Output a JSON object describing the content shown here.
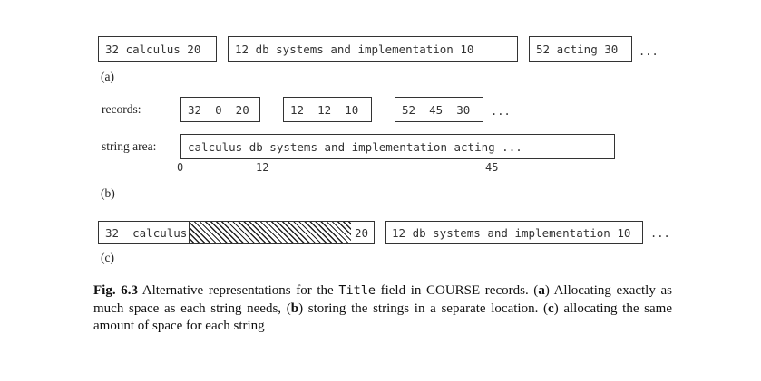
{
  "part_a": {
    "label": "(a)",
    "boxes": [
      "32 calculus 20",
      "12 db systems and implementation 10",
      "52 acting 30"
    ],
    "ellipsis": "..."
  },
  "part_b": {
    "label": "(b)",
    "records_label": "records:",
    "records": [
      "32  0  20",
      "12  12  10",
      "52  45  30"
    ],
    "records_ellipsis": "...",
    "string_area_label": "string area:",
    "string_area": "calculus db systems and implementation acting ...",
    "offsets": [
      "0",
      "12",
      "45"
    ]
  },
  "part_c": {
    "label": "(c)",
    "record1_id": "32",
    "record1_text": "calculus",
    "record1_end": "20",
    "record2": "12 db systems and implementation 10",
    "ellipsis": "..."
  },
  "caption": {
    "fig": "Fig. 6.3",
    "t1": " Alternative representations for the ",
    "code": "Title",
    "t2": " field in COURSE records. (",
    "a": "a",
    "t3": ") Allocating exactly as much space as each string needs, (",
    "b": "b",
    "t4": ") storing the strings in a separate location. (",
    "c": "c",
    "t5": ") allocating the same amount of space for each string"
  }
}
